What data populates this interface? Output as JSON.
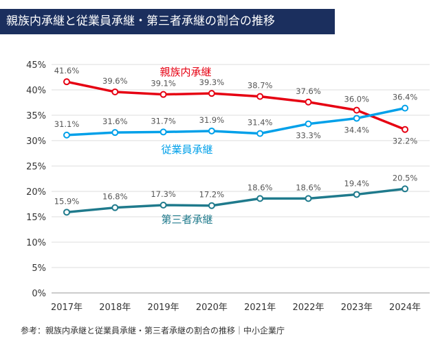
{
  "title": "親族内承継と従業員承継・第三者承継の割合の推移",
  "source": "参考：親族内承継と従業員承継・第三者承継の割合の推移｜中小企業庁",
  "chart_data": {
    "type": "line",
    "categories": [
      "2017年",
      "2018年",
      "2019年",
      "2020年",
      "2021年",
      "2022年",
      "2023年",
      "2024年"
    ],
    "ylim": [
      0,
      45
    ],
    "yticks": [
      0,
      5,
      10,
      15,
      20,
      25,
      30,
      35,
      40,
      45
    ],
    "ytick_format": "%",
    "grid": "horizontal",
    "series": [
      {
        "name": "親族内承継",
        "color": "#e60012",
        "values": [
          41.6,
          39.6,
          39.1,
          39.3,
          38.7,
          37.6,
          36.0,
          32.2
        ]
      },
      {
        "name": "従業員承継",
        "color": "#00a0e9",
        "values": [
          31.1,
          31.6,
          31.7,
          31.9,
          31.4,
          33.3,
          34.4,
          36.4
        ]
      },
      {
        "name": "第三者承継",
        "color": "#1f7a8c",
        "values": [
          15.9,
          16.8,
          17.3,
          17.2,
          18.6,
          18.6,
          19.4,
          20.5
        ]
      }
    ]
  }
}
